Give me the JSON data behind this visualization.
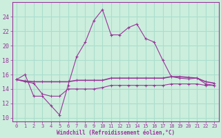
{
  "line1_x": [
    0,
    1,
    2,
    3,
    4,
    5,
    6,
    7,
    8,
    9,
    10,
    11,
    12,
    13,
    14,
    15,
    16,
    17,
    18,
    19,
    20,
    21,
    22,
    23
  ],
  "line1_y": [
    15.3,
    16.0,
    13.0,
    13.0,
    11.7,
    10.4,
    14.5,
    18.5,
    20.5,
    23.5,
    25.0,
    21.5,
    21.5,
    22.5,
    23.0,
    21.0,
    20.5,
    18.0,
    15.7,
    15.5,
    15.4,
    15.5,
    14.7,
    14.5
  ],
  "line2_x": [
    0,
    1,
    2,
    3,
    4,
    5,
    6,
    7,
    8,
    9,
    10,
    11,
    12,
    13,
    14,
    15,
    16,
    17,
    18,
    19,
    20,
    21,
    22,
    23
  ],
  "line2_y": [
    15.3,
    15.1,
    15.0,
    15.0,
    15.0,
    15.0,
    15.0,
    15.2,
    15.2,
    15.2,
    15.2,
    15.5,
    15.5,
    15.5,
    15.5,
    15.5,
    15.5,
    15.5,
    15.7,
    15.7,
    15.6,
    15.5,
    15.0,
    14.8
  ],
  "line3_x": [
    0,
    1,
    2,
    3,
    4,
    5,
    6,
    7,
    8,
    9,
    10,
    11,
    12,
    13,
    14,
    15,
    16,
    17,
    18,
    19,
    20,
    21,
    22,
    23
  ],
  "line3_y": [
    15.3,
    15.0,
    14.8,
    13.3,
    13.0,
    13.0,
    14.0,
    14.0,
    14.0,
    14.0,
    14.2,
    14.5,
    14.5,
    14.5,
    14.5,
    14.5,
    14.5,
    14.5,
    14.7,
    14.7,
    14.7,
    14.7,
    14.5,
    14.5
  ],
  "line_color": "#993399",
  "bg_color": "#cceedd",
  "grid_color": "#aaddcc",
  "xlabel": "Windchill (Refroidissement éolien,°C)",
  "xlabel_color": "#993399",
  "tick_color": "#993399",
  "ylim": [
    9.5,
    26
  ],
  "xlim": [
    -0.5,
    23.5
  ],
  "yticks": [
    10,
    12,
    14,
    16,
    18,
    20,
    22,
    24
  ],
  "xticks": [
    0,
    1,
    2,
    3,
    4,
    5,
    6,
    7,
    8,
    9,
    10,
    11,
    12,
    13,
    14,
    15,
    16,
    17,
    18,
    19,
    20,
    21,
    22,
    23
  ]
}
